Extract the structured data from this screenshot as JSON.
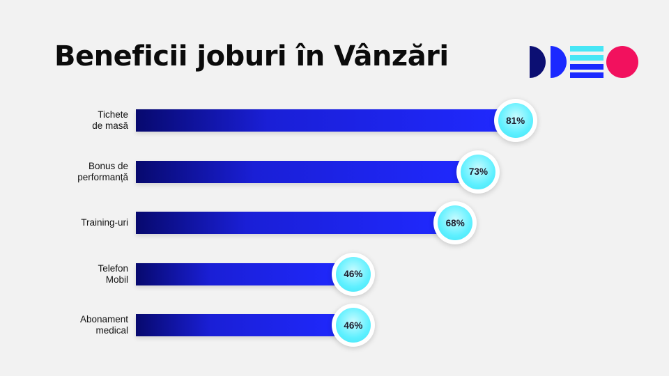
{
  "title": "Beneficii joburi în Vânzări",
  "colors": {
    "background": "#f2f2f2",
    "bar_dark": "#07096e",
    "bar_bright": "#2029ff",
    "badge": "#5ef0ff",
    "logo_navy": "#0c0f73",
    "logo_blue": "#1b29ff",
    "logo_cyan": "#47e6f5",
    "logo_pink": "#f2115e"
  },
  "chart_data": {
    "type": "bar",
    "orientation": "horizontal",
    "categories": [
      [
        "Tichete",
        "de masă"
      ],
      [
        "Bonus de",
        "performanță"
      ],
      [
        "Training-uri"
      ],
      [
        "Telefon",
        "Mobil"
      ],
      [
        "Abonament",
        "medical"
      ]
    ],
    "values": [
      81,
      73,
      68,
      46,
      46
    ],
    "value_labels": [
      "81%",
      "73%",
      "68%",
      "46%",
      "46%"
    ],
    "unit": "%",
    "xlim": [
      0,
      100
    ],
    "grid": false,
    "legend": "none"
  }
}
